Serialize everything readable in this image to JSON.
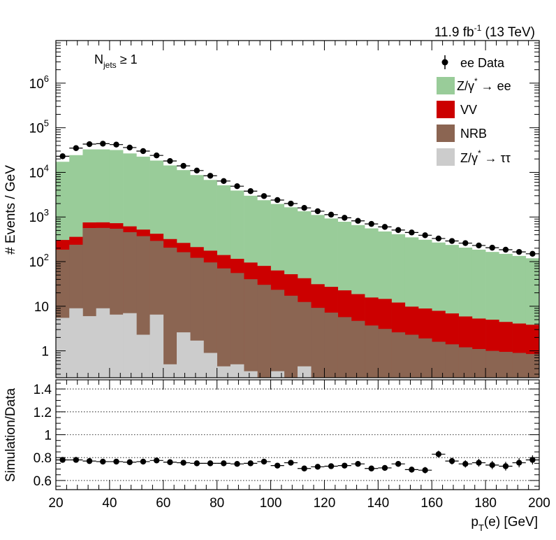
{
  "chart_data": [
    {
      "type": "bar",
      "panel": "main",
      "stacked": true,
      "log_y": true,
      "header_right": "11.9 fb",
      "header_sup": "-1",
      "header_right_tail": " (13 TeV)",
      "annotation": {
        "main": "N",
        "sub": "jets",
        "tail": " ≥ 1"
      },
      "ylabel": "# Events / GeV",
      "xlim": [
        20,
        200
      ],
      "ylim": [
        0.25,
        9000000
      ],
      "y_tick_labels": [
        {
          "value": 1000000,
          "base": "10",
          "exp": "6"
        },
        {
          "value": 100000,
          "base": "10",
          "exp": "5"
        },
        {
          "value": 10000,
          "base": "10",
          "exp": "4"
        },
        {
          "value": 1000,
          "base": "10",
          "exp": "3"
        },
        {
          "value": 100,
          "base": "10",
          "exp": "2"
        },
        {
          "value": 10,
          "base": "10",
          "exp": ""
        },
        {
          "value": 1,
          "base": "1",
          "exp": ""
        }
      ],
      "bin_low_edges": [
        20,
        25,
        30,
        35,
        40,
        45,
        50,
        55,
        60,
        65,
        70,
        75,
        80,
        85,
        90,
        95,
        100,
        105,
        110,
        115,
        120,
        125,
        130,
        135,
        140,
        145,
        150,
        155,
        160,
        165,
        170,
        175,
        180,
        185,
        190,
        195
      ],
      "bin_width": 5,
      "series": [
        {
          "name": "Z/γ* → ττ",
          "legend_main": "Z/γ",
          "legend_sup": "*",
          "legend_tail": " → ττ",
          "color": "#cccccc",
          "values": [
            5.5,
            9,
            6,
            9,
            6.5,
            7,
            2.3,
            6.5,
            0.5,
            2.6,
            1.7,
            0.9,
            0.45,
            0.5,
            0.35,
            0.2,
            0.35,
            0.2,
            0.45,
            0.2,
            0.2,
            0.2,
            0.2,
            0.2,
            0.2,
            0.2,
            0.2,
            0.2,
            0.2,
            0.2,
            0.2,
            0.2,
            0.2,
            0.2,
            0.2,
            0.2
          ]
        },
        {
          "name": "NRB",
          "legend_main": "NRB",
          "color": "#8b6552",
          "values": [
            180,
            230,
            560,
            560,
            540,
            450,
            370,
            285,
            205,
            160,
            120,
            95,
            70,
            55,
            40,
            30,
            23,
            17,
            12,
            9,
            7,
            5.5,
            4.5,
            3.5,
            2.9,
            2.4,
            2.1,
            1.7,
            1.4,
            1.2,
            1.0,
            0.9,
            0.8,
            0.75,
            0.7,
            0.65
          ]
        },
        {
          "name": "VV",
          "legend_main": "VV",
          "color": "#cc0000",
          "values": [
            120,
            120,
            190,
            190,
            180,
            160,
            150,
            130,
            115,
            100,
            90,
            80,
            70,
            60,
            55,
            50,
            40,
            35,
            30,
            22,
            20,
            17,
            14,
            12,
            11.5,
            9.5,
            7.5,
            7,
            6.3,
            5.5,
            4.7,
            4.2,
            4,
            3.5,
            3.2,
            3.0
          ]
        },
        {
          "name": "Z/γ* → ee",
          "legend_main": "Z/γ",
          "legend_sup": "*",
          "legend_tail": " → ee",
          "color": "#99cc99",
          "values": [
            17000,
            24000,
            32000,
            32000,
            31000,
            26000,
            22000,
            18000,
            14000,
            11000,
            8500,
            6600,
            5000,
            3800,
            2900,
            2300,
            1900,
            1600,
            1300,
            1080,
            900,
            760,
            640,
            540,
            460,
            400,
            340,
            300,
            260,
            230,
            200,
            180,
            160,
            145,
            130,
            115
          ]
        }
      ],
      "data_points": {
        "name": "ee Data",
        "legend_main": "ee Data",
        "x": [
          22.5,
          27.5,
          32.5,
          37.5,
          42.5,
          47.5,
          52.5,
          57.5,
          62.5,
          67.5,
          72.5,
          77.5,
          82.5,
          87.5,
          92.5,
          97.5,
          102.5,
          107.5,
          112.5,
          117.5,
          122.5,
          127.5,
          132.5,
          137.5,
          142.5,
          147.5,
          152.5,
          157.5,
          162.5,
          167.5,
          172.5,
          177.5,
          182.5,
          187.5,
          192.5,
          197.5
        ],
        "y": [
          23000,
          35000,
          43000,
          44000,
          42000,
          36000,
          30000,
          24000,
          18000,
          14000,
          11000,
          8400,
          6400,
          4900,
          3800,
          2950,
          2400,
          2000,
          1600,
          1350,
          1130,
          960,
          820,
          700,
          600,
          510,
          450,
          390,
          330,
          290,
          260,
          230,
          205,
          185,
          165,
          150
        ]
      }
    },
    {
      "type": "scatter",
      "panel": "ratio",
      "ylabel": "Simulation/Data",
      "xlabel_main": "p",
      "xlabel_sub": "T",
      "xlabel_tail": "(e) [GeV]",
      "xlim": [
        20,
        200
      ],
      "ylim": [
        0.52,
        1.48
      ],
      "y_ticks": [
        "0.6",
        "0.8",
        "1",
        "1.2",
        "1.4"
      ],
      "x_ticks": [
        "20",
        "40",
        "60",
        "80",
        "100",
        "120",
        "140",
        "160",
        "180",
        "200"
      ],
      "grid": "horizontal dotted",
      "x": [
        22.5,
        27.5,
        32.5,
        37.5,
        42.5,
        47.5,
        52.5,
        57.5,
        62.5,
        67.5,
        72.5,
        77.5,
        82.5,
        87.5,
        92.5,
        97.5,
        102.5,
        107.5,
        112.5,
        117.5,
        122.5,
        127.5,
        132.5,
        137.5,
        142.5,
        147.5,
        152.5,
        157.5,
        162.5,
        167.5,
        172.5,
        177.5,
        182.5,
        187.5,
        192.5,
        197.5
      ],
      "y": [
        0.78,
        0.78,
        0.77,
        0.765,
        0.765,
        0.76,
        0.765,
        0.775,
        0.76,
        0.755,
        0.75,
        0.75,
        0.75,
        0.745,
        0.75,
        0.765,
        0.73,
        0.755,
        0.705,
        0.72,
        0.725,
        0.73,
        0.745,
        0.705,
        0.71,
        0.745,
        0.695,
        0.69,
        0.83,
        0.77,
        0.745,
        0.755,
        0.735,
        0.725,
        0.755,
        0.78
      ],
      "yerr": [
        0.012,
        0.01,
        0.01,
        0.01,
        0.01,
        0.01,
        0.01,
        0.01,
        0.01,
        0.01,
        0.01,
        0.012,
        0.012,
        0.012,
        0.013,
        0.015,
        0.015,
        0.017,
        0.018,
        0.018,
        0.02,
        0.02,
        0.022,
        0.022,
        0.024,
        0.025,
        0.026,
        0.028,
        0.03,
        0.03,
        0.032,
        0.034,
        0.036,
        0.038,
        0.04,
        0.04
      ]
    }
  ]
}
